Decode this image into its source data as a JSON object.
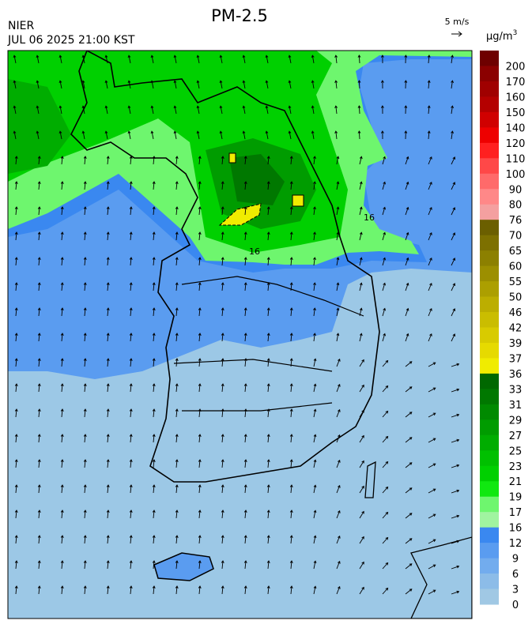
{
  "header": {
    "title": "PM-2.5",
    "agency": "NIER",
    "timestamp": "JUL 06 2025 21:00 KST"
  },
  "wind_scale": {
    "label": "5 m/s"
  },
  "contour_labels": [
    "16",
    "16"
  ],
  "legend": {
    "unit": "µg/m",
    "unit_superscript": "3",
    "labels": [
      200,
      170,
      160,
      150,
      140,
      120,
      110,
      100,
      90,
      80,
      76,
      70,
      65,
      60,
      55,
      50,
      46,
      42,
      39,
      37,
      36,
      33,
      31,
      29,
      27,
      25,
      23,
      21,
      19,
      17,
      16,
      12,
      9,
      6,
      3,
      0
    ],
    "colors": [
      "#6e0000",
      "#8b0000",
      "#a00000",
      "#b40000",
      "#d00000",
      "#ee0000",
      "#ff2020",
      "#ff4848",
      "#ff6a6a",
      "#ff8888",
      "#f4a0a0",
      "#6b5f00",
      "#7d7000",
      "#8c8000",
      "#9c8f00",
      "#ac9f00",
      "#bcae00",
      "#cabd00",
      "#d8cb00",
      "#e6da00",
      "#f0ec00",
      "#006800",
      "#007800",
      "#008a00",
      "#009c00",
      "#00ad00",
      "#00c000",
      "#00d000",
      "#10e810",
      "#6ef66e",
      "#a0f4a0",
      "#3a88f0",
      "#5a9cf0",
      "#72acee",
      "#8cbce8",
      "#a0c8e4"
    ]
  }
}
